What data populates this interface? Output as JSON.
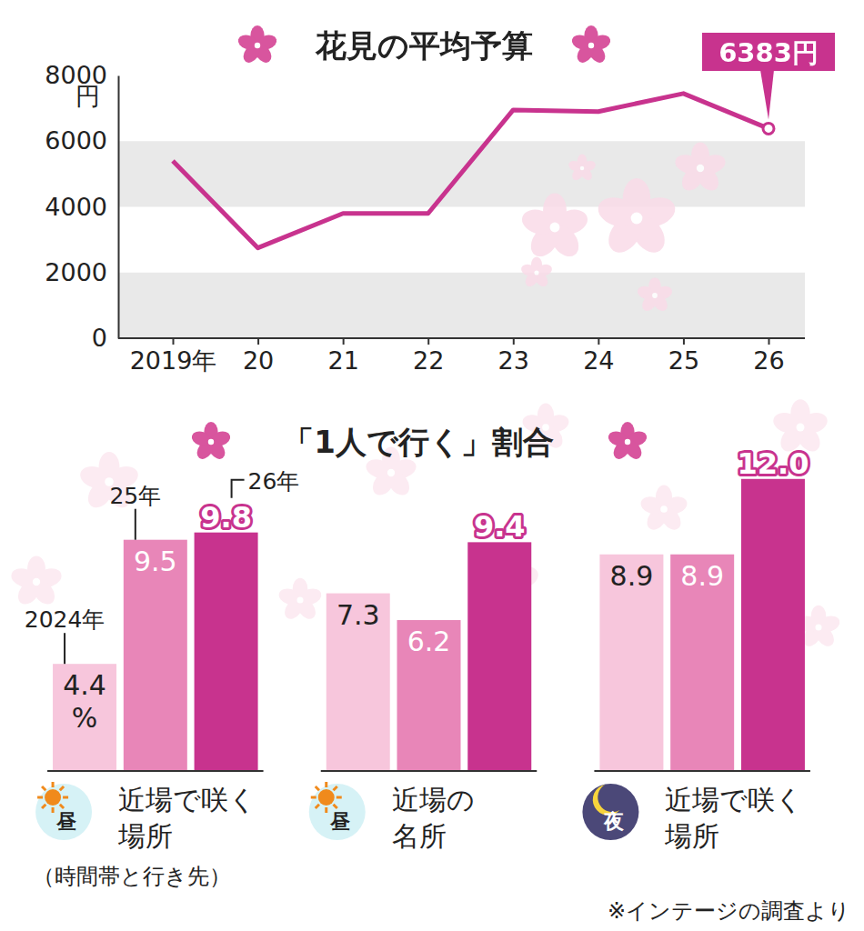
{
  "chart_data": [
    {
      "type": "line",
      "title": "花見の平均予算",
      "categories": [
        "2019年",
        "20",
        "21",
        "22",
        "23",
        "24",
        "25",
        "26"
      ],
      "values": [
        5400,
        2750,
        3800,
        3800,
        6950,
        6900,
        7450,
        6383
      ],
      "value_labels": [
        null,
        null,
        null,
        null,
        null,
        null,
        null,
        "6383円"
      ],
      "ylabel": "円",
      "ylim": [
        0,
        8000
      ],
      "yticks": [
        0,
        2000,
        4000,
        6000,
        8000
      ],
      "grid": true,
      "color": "#c8338e",
      "marker": "circle"
    },
    {
      "type": "bar",
      "title": "「1人で行く」割合",
      "categories": [
        "近場で咲く\n場所",
        "近場の\n名所",
        "近場で咲く\n場所"
      ],
      "category_icons": [
        "昼",
        "昼",
        "夜"
      ],
      "xlabel": "（時間帯と行き先）",
      "ylabel": "%",
      "ylim": [
        0,
        13
      ],
      "tick_labels": false,
      "data_labels": true,
      "series": [
        {
          "name": "2024年",
          "color": "#f7c6dc",
          "values": [
            4.4,
            7.3,
            8.9
          ]
        },
        {
          "name": "25年",
          "color": "#e886b8",
          "values": [
            9.5,
            6.2,
            8.9
          ]
        },
        {
          "name": "26年",
          "color": "#c8338e",
          "values": [
            9.8,
            9.4,
            12.0
          ],
          "value_labels": [
            "9.8",
            "9.4",
            "12.0"
          ]
        }
      ],
      "source": "※インテージの調査より"
    }
  ]
}
